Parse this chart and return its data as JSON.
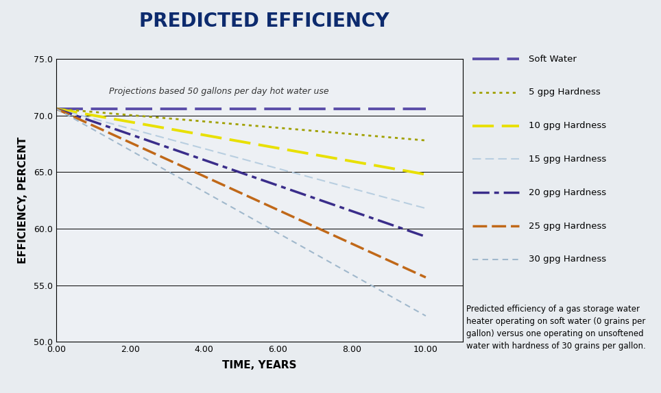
{
  "title": "PREDICTED EFFICIENCY",
  "xlabel": "TIME, YEARS",
  "ylabel": "EFFICIENCY, PERCENT",
  "annotation": "Projections based 50 gallons per day hot water use",
  "description": "Predicted efficiency of a gas storage water\nheater operating on soft water (0 grains per\ngallon) versus one operating on unsoftened\nwater with hardness of 30 grains per gallon.",
  "xlim": [
    0,
    11
  ],
  "ylim": [
    50.0,
    75.0
  ],
  "xticks": [
    0.0,
    2.0,
    4.0,
    6.0,
    8.0,
    10.0
  ],
  "yticks": [
    50.0,
    55.0,
    60.0,
    65.0,
    70.0,
    75.0
  ],
  "background_color": "#e8ecf0",
  "plot_bg_color": "#edf0f4",
  "title_color": "#0d2b6e",
  "lines": [
    {
      "label": "Soft Water",
      "x": [
        0,
        10
      ],
      "y": [
        70.6,
        70.6
      ],
      "color": "#5b4ea8",
      "linestyle": "solid_dash",
      "linewidth": 2.8
    },
    {
      "label": "5 gpg Hardness",
      "x": [
        0,
        10
      ],
      "y": [
        70.6,
        67.8
      ],
      "color": "#a0a000",
      "linestyle": "dotted",
      "linewidth": 2.0
    },
    {
      "label": "10 gpg Hardness",
      "x": [
        0,
        10
      ],
      "y": [
        70.6,
        64.8
      ],
      "color": "#e8e000",
      "linestyle": "dashed",
      "linewidth": 2.8
    },
    {
      "label": "15 gpg Hardness",
      "x": [
        0,
        10
      ],
      "y": [
        70.6,
        61.8
      ],
      "color": "#b8cee0",
      "linestyle": "long_dash",
      "linewidth": 1.5
    },
    {
      "label": "20 gpg Hardness",
      "x": [
        0,
        10
      ],
      "y": [
        70.6,
        59.3
      ],
      "color": "#3a2d8a",
      "linestyle": "dashdot",
      "linewidth": 2.5
    },
    {
      "label": "25 gpg Hardness",
      "x": [
        0,
        10
      ],
      "y": [
        70.6,
        55.7
      ],
      "color": "#c06818",
      "linestyle": "dashed2",
      "linewidth": 2.5
    },
    {
      "label": "30 gpg Hardness",
      "x": [
        0,
        10
      ],
      "y": [
        70.6,
        52.3
      ],
      "color": "#a0b8cc",
      "linestyle": "dot_dash",
      "linewidth": 1.5
    }
  ]
}
